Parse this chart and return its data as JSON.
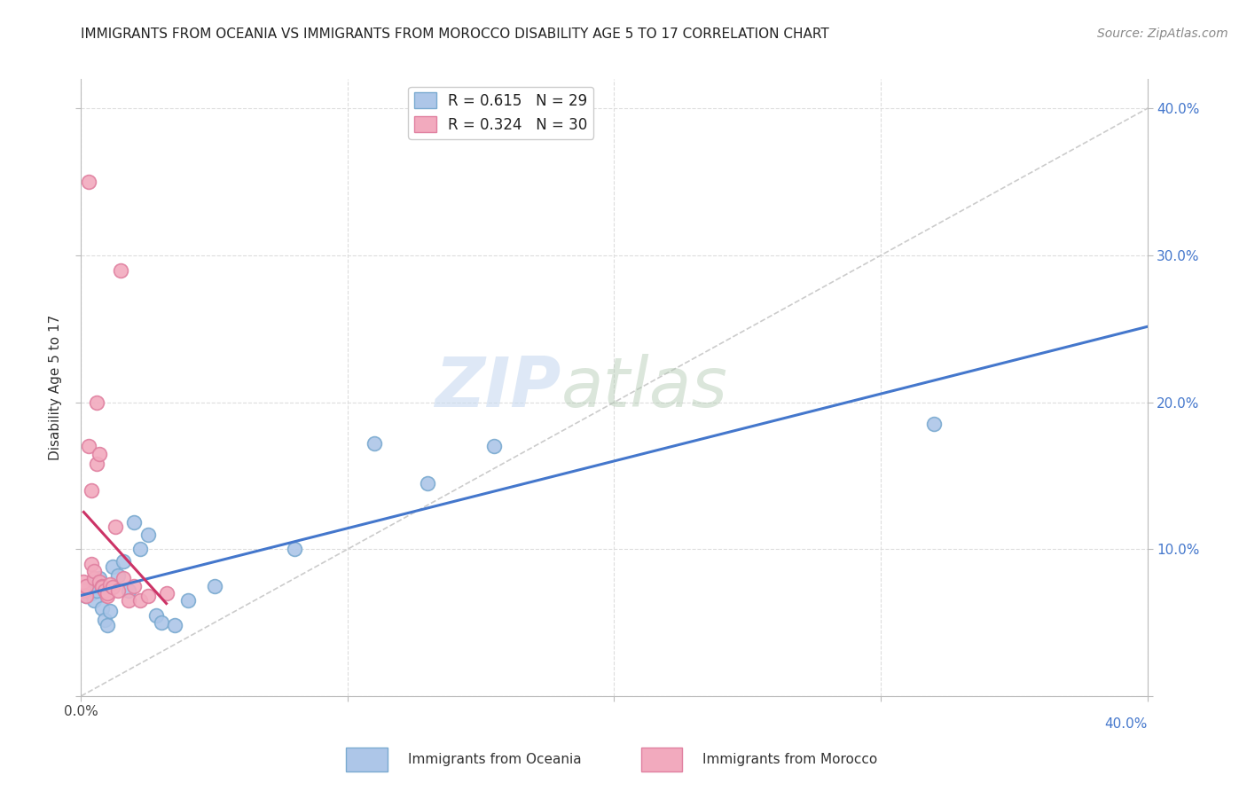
{
  "title": "IMMIGRANTS FROM OCEANIA VS IMMIGRANTS FROM MOROCCO DISABILITY AGE 5 TO 17 CORRELATION CHART",
  "source": "Source: ZipAtlas.com",
  "ylabel": "Disability Age 5 to 17",
  "xlim": [
    0.0,
    0.4
  ],
  "ylim": [
    0.0,
    0.42
  ],
  "oceania_R": 0.615,
  "oceania_N": 29,
  "morocco_R": 0.324,
  "morocco_N": 30,
  "oceania_color": "#adc6e8",
  "morocco_color": "#f2aabe",
  "oceania_edge_color": "#7aaad0",
  "morocco_edge_color": "#e080a0",
  "oceania_line_color": "#4477cc",
  "morocco_line_color": "#cc3366",
  "diagonal_color": "#cccccc",
  "watermark_zip": "ZIP",
  "watermark_atlas": "atlas",
  "legend_label_oceania": "Immigrants from Oceania",
  "legend_label_morocco": "Immigrants from Morocco",
  "background_color": "#ffffff",
  "oceania_x": [
    0.001,
    0.002,
    0.003,
    0.004,
    0.005,
    0.005,
    0.006,
    0.007,
    0.008,
    0.009,
    0.01,
    0.011,
    0.012,
    0.014,
    0.016,
    0.018,
    0.02,
    0.022,
    0.025,
    0.028,
    0.03,
    0.035,
    0.04,
    0.05,
    0.08,
    0.11,
    0.13,
    0.155,
    0.32
  ],
  "oceania_y": [
    0.072,
    0.068,
    0.075,
    0.07,
    0.078,
    0.065,
    0.072,
    0.08,
    0.06,
    0.052,
    0.048,
    0.058,
    0.088,
    0.082,
    0.092,
    0.072,
    0.118,
    0.1,
    0.11,
    0.055,
    0.05,
    0.048,
    0.065,
    0.075,
    0.1,
    0.172,
    0.145,
    0.17,
    0.185
  ],
  "morocco_x": [
    0.001,
    0.001,
    0.002,
    0.002,
    0.003,
    0.003,
    0.004,
    0.004,
    0.005,
    0.005,
    0.006,
    0.006,
    0.007,
    0.007,
    0.008,
    0.008,
    0.009,
    0.01,
    0.01,
    0.011,
    0.012,
    0.013,
    0.014,
    0.015,
    0.016,
    0.018,
    0.02,
    0.022,
    0.025,
    0.032
  ],
  "morocco_y": [
    0.072,
    0.078,
    0.068,
    0.075,
    0.35,
    0.17,
    0.09,
    0.14,
    0.08,
    0.085,
    0.2,
    0.158,
    0.165,
    0.078,
    0.075,
    0.074,
    0.072,
    0.068,
    0.07,
    0.076,
    0.074,
    0.115,
    0.072,
    0.29,
    0.08,
    0.065,
    0.075,
    0.065,
    0.068,
    0.07
  ]
}
